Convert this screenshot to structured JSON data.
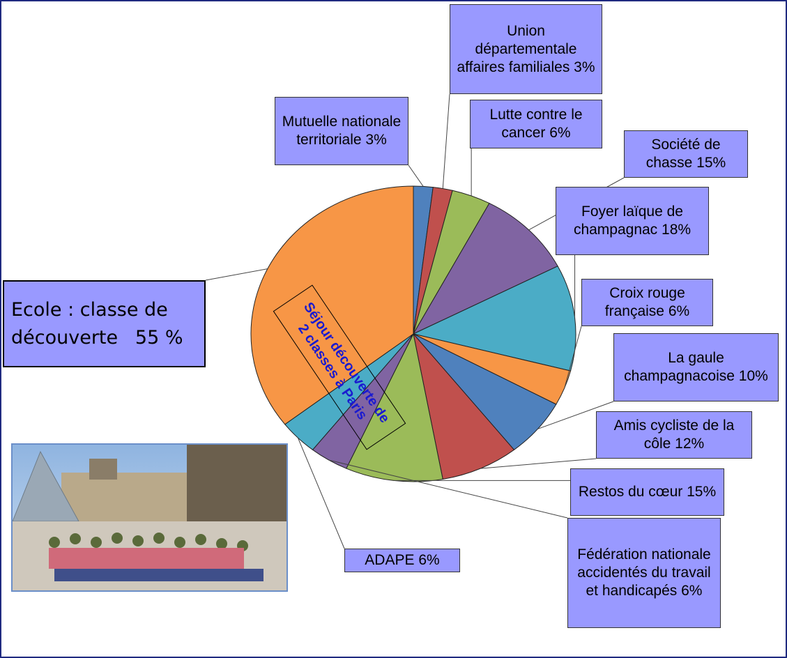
{
  "chart_data": {
    "type": "pie",
    "annotation": "Séjour découverte de 2 classes à Paris",
    "categories": [
      "Mutuelle nationale territoriale",
      "Union départementale affaires familiales",
      "Lutte contre le cancer",
      "Société de chasse",
      "Foyer laïque de champagnac",
      "Croix rouge française",
      "La gaule champagnacoise",
      "Amis cycliste de la côle",
      "Restos du cœur",
      "Fédération nationale accidentés du travail et handicapés",
      "ADAPE",
      "Ecole : classe de découverte"
    ],
    "values": [
      3,
      3,
      6,
      15,
      18,
      6,
      10,
      12,
      15,
      6,
      6,
      55
    ],
    "value_labels": [
      "3%",
      "3%",
      "6%",
      "15%",
      "18%",
      "6%",
      "10%",
      "12%",
      "15%",
      "6%",
      "6%",
      "55 %"
    ],
    "colors": [
      "#4f81bd",
      "#c0504d",
      "#9bbb59",
      "#8064a2",
      "#4bacc6",
      "#f79646",
      "#4f81bd",
      "#c0504d",
      "#9bbb59",
      "#8064a2",
      "#4bacc6",
      "#f79646"
    ]
  }
}
